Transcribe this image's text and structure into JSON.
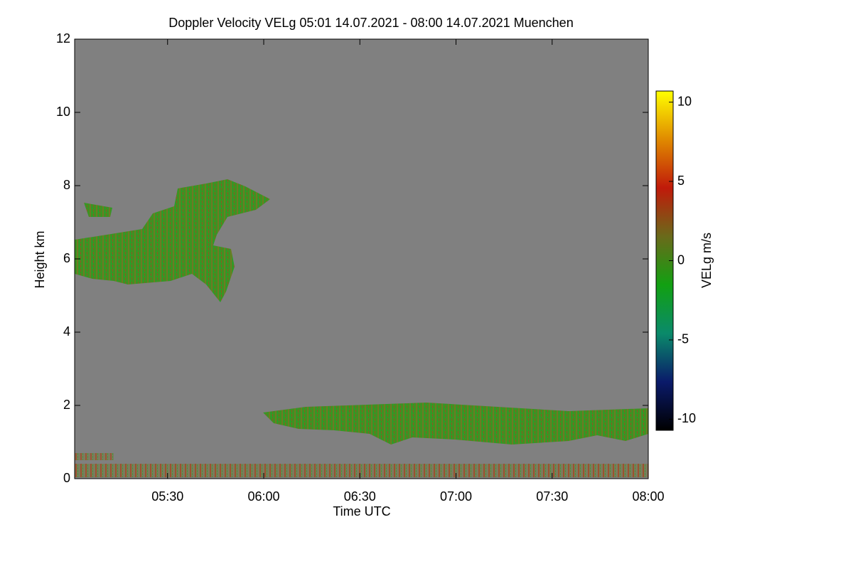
{
  "chart_data": {
    "type": "heatmap",
    "title": "Doppler Velocity VELg   05:01 14.07.2021 - 08:00 14.07.2021 Muenchen",
    "xlabel": "Time UTC",
    "ylabel": "Height km",
    "colorbar_label": "VELg m/s",
    "xlim": [
      "05:01",
      "08:00"
    ],
    "xticks": [
      "05:30",
      "06:00",
      "06:30",
      "07:00",
      "07:30",
      "08:00"
    ],
    "ylim": [
      0,
      12
    ],
    "yticks": [
      0,
      2,
      4,
      6,
      8,
      10,
      12
    ],
    "zlim": [
      -10.7,
      10.7
    ],
    "zticks": [
      -10,
      -5,
      0,
      5,
      10
    ],
    "background": "#808080",
    "colormap": [
      "#000000",
      "#0a1a6a",
      "#0a8a6a",
      "#12a012",
      "#6a6a1a",
      "#c01a0a",
      "#e08a00",
      "#ffff00"
    ]
  }
}
